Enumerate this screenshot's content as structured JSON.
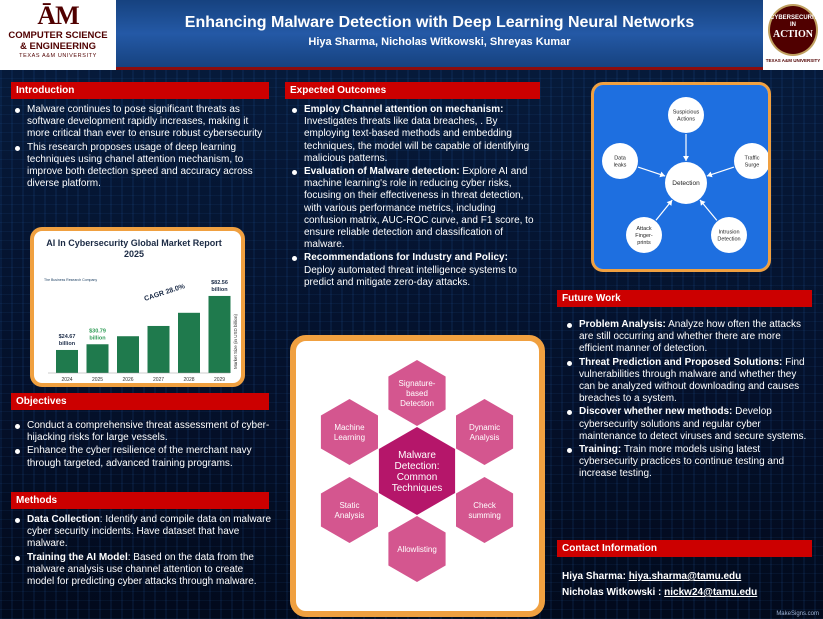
{
  "header": {
    "logo_left": {
      "mark": "ĀM",
      "line1": "COMPUTER SCIENCE",
      "line2": "& ENGINEERING",
      "line3": "TEXAS A&M UNIVERSITY"
    },
    "title": "Enhancing Malware Detection with Deep Learning Neural Networks",
    "authors": "Hiya Sharma, Nicholas Witkowski, Shreyas Kumar",
    "logo_right": {
      "line1": "CYBERSECURITY",
      "line2": "IN",
      "line3": "ACTION",
      "line4": "TEXAS A&M UNIVERSITY"
    }
  },
  "introduction": {
    "heading": "Introduction",
    "bullets": [
      "Malware continues to pose significant threats as software development rapidly increases, making it more critical than ever to ensure robust cybersecurity",
      "This research proposes usage of deep learning techniques using chanel attention mechanism, to improve both detection speed and accuracy across diverse platform."
    ]
  },
  "market_chart": {
    "title": "AI In Cybersecurity Global Market Report",
    "year": "2025",
    "cagr_label": "CAGR 28.0%",
    "ylabel": "Market Size (in USD billion)",
    "brand": "The Business Research Company",
    "chart_data": {
      "type": "bar",
      "categories": [
        "2024",
        "2025",
        "2026",
        "2027",
        "2028",
        "2029"
      ],
      "values": [
        24.67,
        30.79,
        39.4,
        50.4,
        64.5,
        82.56
      ],
      "data_labels": [
        "$24.67 billion",
        "$30.79 billion",
        "",
        "",
        "",
        "$82.56 billion"
      ],
      "ylim": [
        0,
        90
      ]
    }
  },
  "objectives": {
    "heading": "Objectives",
    "bullets": [
      "Conduct a comprehensive threat assessment of cyber-hijacking risks for large vessels.",
      "Enhance the cyber resilience of the merchant navy through targeted, advanced training programs."
    ]
  },
  "methods": {
    "heading": "Methods",
    "bullets": [
      {
        "bold": "Data Collection",
        "text": ": Identify and compile data on malware cyber security incidents. Have dataset that have malware."
      },
      {
        "bold": "Training the AI Model",
        "text": ": Based on the data from the malware analysis use channel attention to create model for predicting cyber attacks through malware."
      }
    ]
  },
  "expected_outcomes": {
    "heading": "Expected Outcomes",
    "bullets": [
      {
        "bold": "Employ Channel attention on mechanism:",
        "text": " Investigates threats like data breaches, . By employing text-based methods and embedding techniques, the model will be capable of identifying malicious patterns."
      },
      {
        "bold": "Evaluation of Malware detection:",
        "text": " Explore AI and machine learning's role in reducing cyber risks, focusing on their effectiveness in threat detection, with various performance metrics, including confusion matrix, AUC-ROC curve, and F1 score, to ensure reliable detection and classification of malware."
      },
      {
        "bold": "Recommendations for Industry and Policy:",
        "text": " Deploy automated threat intelligence systems to predict and mitigate zero-day attacks."
      }
    ]
  },
  "hexagons": {
    "center": "Malware Detection: Common Techniques",
    "items": [
      "Signature-based Detection",
      "Dynamic Analysis",
      "Check summing",
      "Allowlisting",
      "Static Analysis",
      "Machine Learning"
    ],
    "color_outer": "#d4568f",
    "color_center": "#b5166a"
  },
  "detection_diagram": {
    "center": "Detection",
    "nodes": [
      "Suspicious Actions",
      "Traffic Surge",
      "Intrusion Detection",
      "Attack Finger-prints",
      "Data leaks"
    ],
    "bg_color": "#1e6fe0"
  },
  "future_work": {
    "heading": "Future Work",
    "bullets": [
      {
        "bold": "Problem Analysis:",
        "text": " Analyze how often the attacks are still occurring and whether there are more efficient manner of detection."
      },
      {
        "bold": "Threat Prediction and Proposed Solutions:",
        "text": " Find vulnerabilities through malware and whether they can be analyzed without downloading and causes breaches to a system."
      },
      {
        "bold": "Discover whether new methods:",
        "text": " Develop cybersecurity solutions and regular cyber maintenance to detect viruses and secure systems."
      },
      {
        "bold": "Training:",
        "text": " Train more models using latest cybersecurity practices to continue testing and increase testing."
      }
    ]
  },
  "contact": {
    "heading": "Contact Information",
    "entries": [
      {
        "name": "Hiya Sharma:",
        "email": "hiya.sharma@tamu.edu"
      },
      {
        "name": "Nicholas Witkowski :",
        "email": "nickw24@tamu.edu"
      }
    ]
  },
  "footer": {
    "brand": "MakeSigns.com"
  },
  "colors": {
    "section_red": "#cc0000",
    "maroon": "#500000",
    "frame_orange": "#f0a040"
  }
}
